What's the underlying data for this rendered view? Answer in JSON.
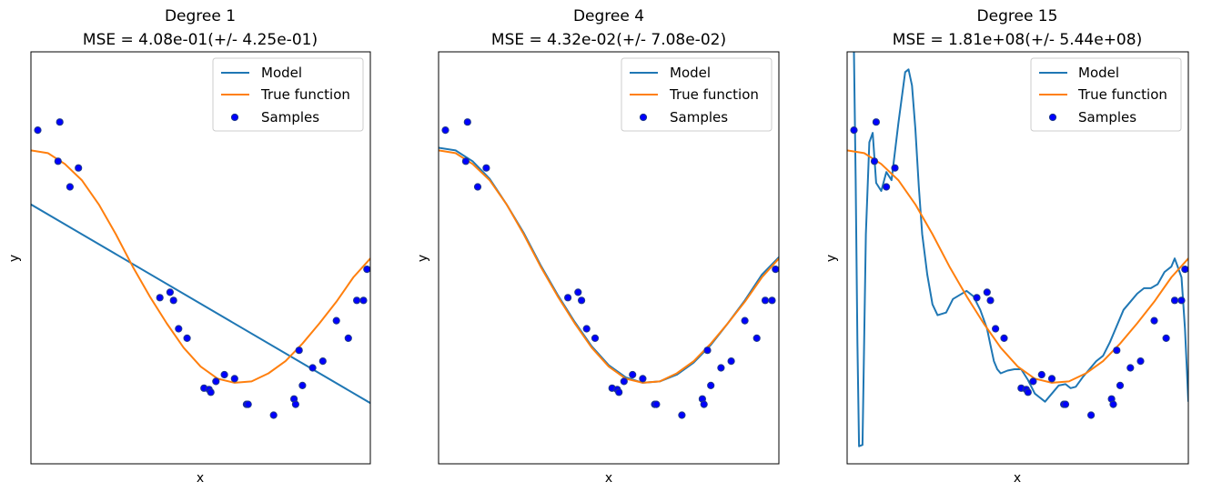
{
  "figure": {
    "colors": {
      "model": "#1f77b4",
      "true_function": "#ff7f0e",
      "samples_face": "#0000ff",
      "samples_edge": "#1f3a8a"
    }
  },
  "chart_data": [
    {
      "type": "line",
      "title_line1": "Degree 1",
      "title_line2": "MSE = 4.08e-01(+/- 4.25e-01)",
      "xlabel": "x",
      "ylabel": "y",
      "xlim": [
        0.0,
        1.0
      ],
      "ylim": [
        -1.5,
        1.55
      ],
      "ticks_visible": false,
      "legend": {
        "position": "upper right",
        "entries": [
          "Model",
          "True function",
          "Samples"
        ]
      },
      "model_curve": {
        "x": [
          0.0,
          1.0
        ],
        "y": [
          0.42,
          -1.05
        ]
      }
    },
    {
      "type": "line",
      "title_line1": "Degree 4",
      "title_line2": "MSE = 4.32e-02(+/- 7.08e-02)",
      "xlabel": "x",
      "ylabel": "y",
      "xlim": [
        0.0,
        1.0
      ],
      "ylim": [
        -1.5,
        1.55
      ],
      "ticks_visible": false,
      "legend": {
        "position": "upper right",
        "entries": [
          "Model",
          "True function",
          "Samples"
        ]
      },
      "model_curve": {
        "x": [
          0.0,
          0.05,
          0.1,
          0.15,
          0.2,
          0.25,
          0.3,
          0.35,
          0.4,
          0.45,
          0.5,
          0.55,
          0.6,
          0.65,
          0.7,
          0.75,
          0.8,
          0.85,
          0.9,
          0.95,
          1.0
        ],
        "y": [
          0.84,
          0.82,
          0.74,
          0.61,
          0.42,
          0.21,
          -0.03,
          -0.25,
          -0.45,
          -0.63,
          -0.77,
          -0.86,
          -0.9,
          -0.89,
          -0.84,
          -0.75,
          -0.62,
          -0.46,
          -0.29,
          -0.1,
          0.03
        ]
      }
    },
    {
      "type": "line",
      "title_line1": "Degree 15",
      "title_line2": "MSE = 1.81e+08(+/- 5.44e+08)",
      "xlabel": "x",
      "ylabel": "y",
      "xlim": [
        0.0,
        1.0
      ],
      "ylim": [
        -1.5,
        1.55
      ],
      "ticks_visible": false,
      "legend": {
        "position": "upper right",
        "entries": [
          "Model",
          "True function",
          "Samples"
        ]
      },
      "model_curve": {
        "x": [
          0.02,
          0.025,
          0.03,
          0.035,
          0.045,
          0.055,
          0.065,
          0.075,
          0.085,
          0.1,
          0.115,
          0.13,
          0.15,
          0.17,
          0.18,
          0.19,
          0.2,
          0.21,
          0.22,
          0.235,
          0.25,
          0.265,
          0.29,
          0.31,
          0.33,
          0.35,
          0.37,
          0.39,
          0.41,
          0.42,
          0.43,
          0.44,
          0.45,
          0.47,
          0.49,
          0.51,
          0.53,
          0.55,
          0.58,
          0.6,
          0.62,
          0.64,
          0.655,
          0.67,
          0.69,
          0.71,
          0.73,
          0.75,
          0.77,
          0.79,
          0.81,
          0.83,
          0.85,
          0.87,
          0.89,
          0.91,
          0.93,
          0.95,
          0.96,
          0.97,
          0.98,
          0.99,
          1.0
        ],
        "y": [
          1.55,
          0.6,
          -0.6,
          -1.37,
          -1.36,
          0.2,
          0.88,
          0.95,
          0.58,
          0.52,
          0.66,
          0.6,
          1.02,
          1.4,
          1.42,
          1.3,
          0.98,
          0.55,
          0.2,
          -0.1,
          -0.32,
          -0.4,
          -0.38,
          -0.28,
          -0.25,
          -0.22,
          -0.26,
          -0.36,
          -0.5,
          -0.62,
          -0.74,
          -0.8,
          -0.83,
          -0.81,
          -0.8,
          -0.8,
          -0.88,
          -0.98,
          -1.04,
          -0.98,
          -0.92,
          -0.91,
          -0.94,
          -0.93,
          -0.86,
          -0.8,
          -0.74,
          -0.7,
          -0.6,
          -0.48,
          -0.36,
          -0.3,
          -0.24,
          -0.2,
          -0.2,
          -0.17,
          -0.08,
          -0.04,
          0.02,
          -0.05,
          -0.12,
          -0.5,
          -1.04
        ]
      }
    }
  ],
  "true_function": {
    "x": [
      0.0,
      0.05,
      0.1,
      0.15,
      0.2,
      0.25,
      0.3,
      0.35,
      0.4,
      0.45,
      0.5,
      0.55,
      0.6,
      0.65,
      0.7,
      0.75,
      0.8,
      0.85,
      0.9,
      0.95,
      1.0
    ],
    "y": [
      0.82,
      0.8,
      0.72,
      0.6,
      0.42,
      0.2,
      -0.04,
      -0.26,
      -0.46,
      -0.64,
      -0.78,
      -0.87,
      -0.9,
      -0.89,
      -0.83,
      -0.74,
      -0.61,
      -0.46,
      -0.3,
      -0.12,
      0.02
    ]
  },
  "samples": {
    "x": [
      0.02,
      0.08,
      0.085,
      0.115,
      0.14,
      0.38,
      0.41,
      0.42,
      0.435,
      0.46,
      0.51,
      0.525,
      0.53,
      0.545,
      0.57,
      0.6,
      0.635,
      0.64,
      0.715,
      0.775,
      0.78,
      0.79,
      0.8,
      0.83,
      0.86,
      0.9,
      0.935,
      0.96,
      0.98,
      0.99
    ],
    "y": [
      0.97,
      0.74,
      1.03,
      0.55,
      0.69,
      -0.27,
      -0.23,
      -0.29,
      -0.5,
      -0.57,
      -0.94,
      -0.95,
      -0.97,
      -0.89,
      -0.84,
      -0.87,
      -1.06,
      -1.06,
      -1.14,
      -1.02,
      -1.06,
      -0.66,
      -0.92,
      -0.79,
      -0.74,
      -0.44,
      -0.57,
      -0.29,
      -0.29,
      -0.06
    ]
  }
}
